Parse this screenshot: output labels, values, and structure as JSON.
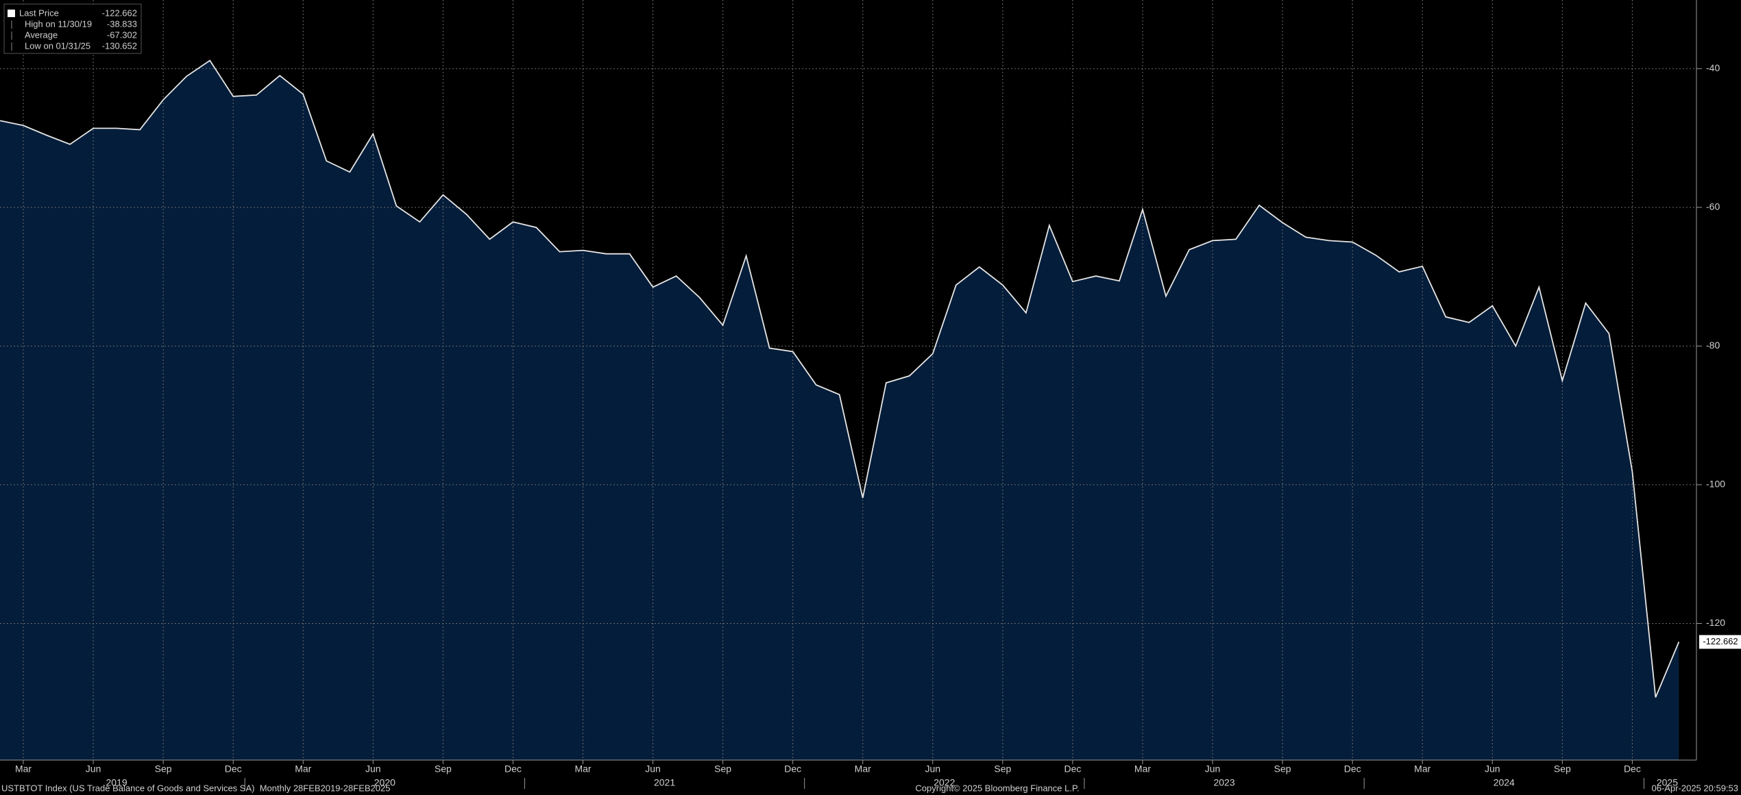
{
  "chart_data": {
    "type": "area",
    "series": [
      {
        "name": "Last Price",
        "color": "#e6e6e6",
        "fill": "#041d3a",
        "values": [
          -47.5,
          -48.2,
          -49.6,
          -50.9,
          -48.6,
          -48.6,
          -48.8,
          -44.5,
          -41.1,
          -38.833,
          -44.0,
          -43.8,
          -41.0,
          -43.7,
          -53.3,
          -54.9,
          -49.4,
          -59.8,
          -62.1,
          -58.2,
          -61.0,
          -64.6,
          -62.1,
          -62.9,
          -66.4,
          -66.2,
          -66.7,
          -66.7,
          -71.5,
          -69.9,
          -73.0,
          -77.0,
          -67.0,
          -80.3,
          -80.8,
          -85.6,
          -87.0,
          -101.9,
          -85.3,
          -84.3,
          -81.1,
          -71.2,
          -68.6,
          -71.2,
          -75.2,
          -62.6,
          -70.7,
          -69.9,
          -70.6,
          -60.3,
          -72.8,
          -66.1,
          -64.8,
          -64.6,
          -59.7,
          -62.2,
          -64.3,
          -64.8,
          -65.0,
          -66.9,
          -69.3,
          -68.5,
          -75.8,
          -76.6,
          -74.2,
          -80.0,
          -71.5,
          -85.0,
          -73.8,
          -78.2,
          -98.1,
          -130.652,
          -122.662
        ]
      }
    ],
    "x": [
      "2019-02",
      "2019-03",
      "2019-04",
      "2019-05",
      "2019-06",
      "2019-07",
      "2019-08",
      "2019-09",
      "2019-10",
      "2019-11",
      "2019-12",
      "2020-01",
      "2020-02",
      "2020-03",
      "2020-04",
      "2020-05",
      "2020-06",
      "2020-07",
      "2020-08",
      "2020-09",
      "2020-10",
      "2020-11",
      "2020-12",
      "2021-01",
      "2021-02",
      "2021-03",
      "2021-04",
      "2021-05",
      "2021-06",
      "2021-07",
      "2021-08",
      "2021-09",
      "2021-10",
      "2021-11",
      "2021-12",
      "2022-01",
      "2022-02",
      "2022-03",
      "2022-04",
      "2022-05",
      "2022-06",
      "2022-07",
      "2022-08",
      "2022-09",
      "2022-10",
      "2022-11",
      "2022-12",
      "2023-01",
      "2023-02",
      "2023-03",
      "2023-04",
      "2023-05",
      "2023-06",
      "2023-07",
      "2023-08",
      "2023-09",
      "2023-10",
      "2023-11",
      "2023-12",
      "2024-01",
      "2024-02",
      "2024-03",
      "2024-04",
      "2024-05",
      "2024-06",
      "2024-07",
      "2024-08",
      "2024-09",
      "2024-10",
      "2024-11",
      "2024-12",
      "2025-01",
      "2025-02"
    ],
    "xticks": [
      {
        "value": "2019-03",
        "label": "Mar"
      },
      {
        "value": "2019-06",
        "label": "Jun"
      },
      {
        "value": "2019-09",
        "label": "Sep"
      },
      {
        "value": "2019-12",
        "label": "Dec"
      },
      {
        "value": "2020-03",
        "label": "Mar"
      },
      {
        "value": "2020-06",
        "label": "Jun"
      },
      {
        "value": "2020-09",
        "label": "Sep"
      },
      {
        "value": "2020-12",
        "label": "Dec"
      },
      {
        "value": "2021-03",
        "label": "Mar"
      },
      {
        "value": "2021-06",
        "label": "Jun"
      },
      {
        "value": "2021-09",
        "label": "Sep"
      },
      {
        "value": "2021-12",
        "label": "Dec"
      },
      {
        "value": "2022-03",
        "label": "Mar"
      },
      {
        "value": "2022-06",
        "label": "Jun"
      },
      {
        "value": "2022-09",
        "label": "Sep"
      },
      {
        "value": "2022-12",
        "label": "Dec"
      },
      {
        "value": "2023-03",
        "label": "Mar"
      },
      {
        "value": "2023-06",
        "label": "Jun"
      },
      {
        "value": "2023-09",
        "label": "Sep"
      },
      {
        "value": "2023-12",
        "label": "Dec"
      },
      {
        "value": "2024-03",
        "label": "Mar"
      },
      {
        "value": "2024-06",
        "label": "Jun"
      },
      {
        "value": "2024-09",
        "label": "Sep"
      },
      {
        "value": "2024-12",
        "label": "Dec"
      }
    ],
    "years": [
      "2019",
      "2020",
      "2021",
      "2022",
      "2023",
      "2024",
      "2025"
    ],
    "ylim": [
      -139.7,
      -30.1
    ],
    "yticks": [
      -40,
      -60,
      -80,
      -100,
      -120
    ],
    "grid": true,
    "legend": [
      {
        "label": "Last Price",
        "value": -122.662
      },
      {
        "label": "High on 11/30/19",
        "value": -38.833
      },
      {
        "label": "Average",
        "value": -67.302
      },
      {
        "label": "Low on 01/31/25",
        "value": -130.652
      }
    ],
    "footer": {
      "left": "USTBTOT Index (US Trade Balance of Goods and Services SA)  Monthly 28FEB2019-28FEB2025",
      "center": "Copyright© 2025 Bloomberg Finance L.P.",
      "right": "06-Apr-2025 20:59:53"
    }
  }
}
